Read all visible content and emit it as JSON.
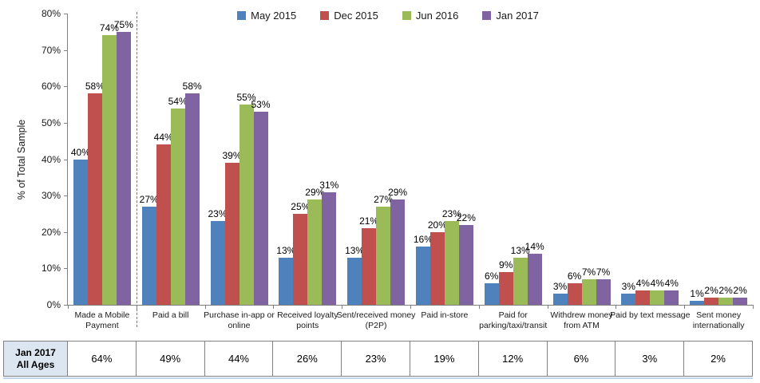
{
  "chart_data": {
    "type": "bar",
    "title": "",
    "xlabel": "",
    "ylabel": "% of Total Sample",
    "ylim": [
      0,
      80
    ],
    "ytick_step": 10,
    "ytick_labels": [
      "0%",
      "10%",
      "20%",
      "30%",
      "40%",
      "50%",
      "60%",
      "70%",
      "80%"
    ],
    "grid": "off",
    "legend_position": "top-center",
    "data_label_suffix": "%",
    "separator_after_category_index": 0,
    "categories": [
      "Made a Mobile Payment",
      "Paid a bill",
      "Purchase in-app or online",
      "Received loyalty points",
      "Sent/received money (P2P)",
      "Paid in-store",
      "Paid for parking/taxi/transit",
      "Withdrew money from ATM",
      "Paid by text message",
      "Sent money internationally"
    ],
    "series": [
      {
        "name": "May 2015",
        "color": "#4F81BD",
        "values": [
          40,
          27,
          23,
          13,
          13,
          16,
          6,
          3,
          3,
          1
        ]
      },
      {
        "name": "Dec 2015",
        "color": "#C0504D",
        "values": [
          58,
          44,
          39,
          25,
          21,
          20,
          9,
          6,
          4,
          2
        ]
      },
      {
        "name": "Jun 2016",
        "color": "#9BBB59",
        "values": [
          74,
          54,
          55,
          29,
          27,
          23,
          13,
          7,
          4,
          2
        ]
      },
      {
        "name": "Jan 2017",
        "color": "#8064A2",
        "values": [
          75,
          58,
          53,
          31,
          29,
          22,
          14,
          7,
          4,
          2
        ]
      }
    ]
  },
  "table": {
    "row_header_lines": [
      "Jan 2017",
      "All Ages"
    ],
    "values": [
      "64%",
      "49%",
      "44%",
      "26%",
      "23%",
      "19%",
      "12%",
      "6%",
      "3%",
      "2%"
    ]
  }
}
